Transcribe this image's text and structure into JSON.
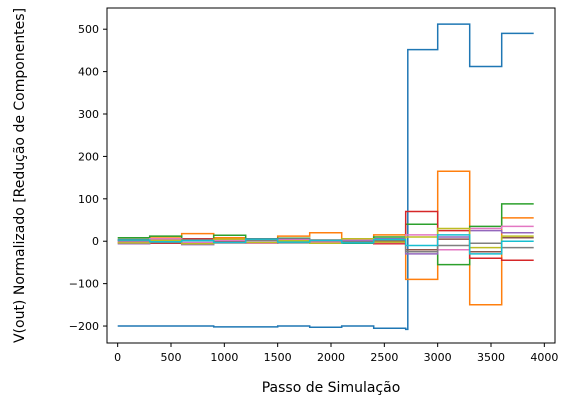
{
  "chart_data": {
    "type": "line",
    "title": "",
    "xlabel": "Passo de Simulação",
    "ylabel": "V(out) Normalizado [Redução de Componentes]",
    "xlim": [
      -100,
      4100
    ],
    "ylim": [
      -240,
      550
    ],
    "x_ticks": [
      0,
      500,
      1000,
      1500,
      2000,
      2500,
      3000,
      3500,
      4000
    ],
    "x_tick_labels": [
      "0",
      "500",
      "1000",
      "1500",
      "2000",
      "2500",
      "3000",
      "3500",
      "4000"
    ],
    "y_ticks": [
      -200,
      -100,
      0,
      100,
      200,
      300,
      400,
      500
    ],
    "y_tick_labels": [
      "−200",
      "−100",
      "0",
      "100",
      "200",
      "300",
      "400",
      "500"
    ],
    "grid": false,
    "series": [
      {
        "color": "#1f77b4",
        "x": [
          0,
          600,
          900,
          1500,
          1800,
          2100,
          2400,
          2700,
          2720,
          3000,
          3300,
          3600,
          3900
        ],
        "values": [
          -200,
          -200,
          -202,
          -200,
          -203,
          -200,
          -205,
          -208,
          452,
          512,
          412,
          490,
          490
        ]
      },
      {
        "color": "#ff7f0e",
        "x": [
          0,
          300,
          600,
          900,
          1200,
          1500,
          1800,
          2100,
          2400,
          2700,
          3000,
          3300,
          3600,
          3900
        ],
        "values": [
          -3,
          10,
          18,
          8,
          -5,
          12,
          20,
          -2,
          15,
          -90,
          165,
          -150,
          55,
          55
        ]
      },
      {
        "color": "#2ca02c",
        "x": [
          0,
          300,
          600,
          900,
          1200,
          1500,
          1800,
          2100,
          2400,
          2700,
          3000,
          3300,
          3600,
          3900
        ],
        "values": [
          8,
          12,
          5,
          14,
          3,
          7,
          2,
          -5,
          10,
          40,
          -55,
          35,
          88,
          88
        ]
      },
      {
        "color": "#d62728",
        "x": [
          0,
          300,
          600,
          900,
          1200,
          1500,
          1800,
          2100,
          2400,
          2700,
          3000,
          3300,
          3600,
          3900
        ],
        "values": [
          2,
          -5,
          6,
          1,
          4,
          -3,
          0,
          3,
          -6,
          70,
          25,
          -40,
          -45,
          -45
        ]
      },
      {
        "color": "#9467bd",
        "x": [
          0,
          300,
          600,
          900,
          1200,
          1500,
          1800,
          2100,
          2400,
          2700,
          3000,
          3300,
          3600,
          3900
        ],
        "values": [
          -6,
          4,
          -8,
          3,
          -2,
          5,
          -4,
          2,
          6,
          -30,
          10,
          25,
          20,
          20
        ]
      },
      {
        "color": "#8c564b",
        "x": [
          0,
          300,
          600,
          900,
          1200,
          1500,
          1800,
          2100,
          2400,
          2700,
          3000,
          3300,
          3600,
          3900
        ],
        "values": [
          4,
          -2,
          2,
          -4,
          6,
          -1,
          3,
          -3,
          1,
          -20,
          5,
          -25,
          8,
          8
        ]
      },
      {
        "color": "#e377c2",
        "x": [
          0,
          300,
          600,
          900,
          1200,
          1500,
          1800,
          2100,
          2400,
          2700,
          3000,
          3300,
          3600,
          3900
        ],
        "values": [
          -2,
          6,
          -3,
          2,
          -5,
          3,
          -2,
          4,
          -3,
          15,
          -20,
          30,
          35,
          35
        ]
      },
      {
        "color": "#7f7f7f",
        "x": [
          0,
          300,
          600,
          900,
          1200,
          1500,
          1800,
          2100,
          2400,
          2700,
          3000,
          3300,
          3600,
          3900
        ],
        "values": [
          1,
          -3,
          4,
          -2,
          2,
          -4,
          1,
          -1,
          3,
          -25,
          -10,
          -5,
          -15,
          -15
        ]
      },
      {
        "color": "#bcbd22",
        "x": [
          0,
          300,
          600,
          900,
          1200,
          1500,
          1800,
          2100,
          2400,
          2700,
          3000,
          3300,
          3600,
          3900
        ],
        "values": [
          -4,
          2,
          -6,
          5,
          -3,
          1,
          -5,
          6,
          -2,
          10,
          30,
          -15,
          12,
          12
        ]
      },
      {
        "color": "#17becf",
        "x": [
          0,
          300,
          600,
          900,
          1200,
          1500,
          1800,
          2100,
          2400,
          2700,
          3000,
          3300,
          3600,
          3900
        ],
        "values": [
          3,
          -1,
          1,
          -3,
          5,
          -2,
          2,
          -4,
          4,
          -10,
          15,
          -30,
          0,
          0
        ]
      }
    ]
  }
}
